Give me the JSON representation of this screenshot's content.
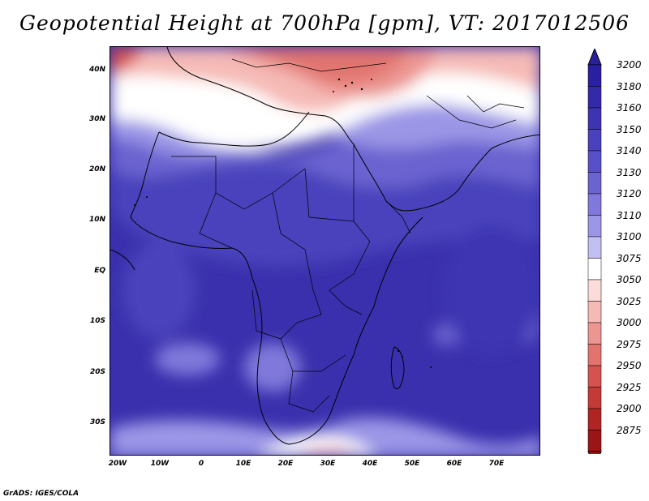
{
  "title": "Geopotential Height at 700hPa [gpm], VT: 2017012506",
  "credit": "GrADS: IGES/COLA",
  "lat_labels": [
    "40N",
    "30N",
    "20N",
    "10N",
    "EQ",
    "10S",
    "20S",
    "30S"
  ],
  "lon_labels": [
    "20W",
    "10W",
    "0",
    "10E",
    "20E",
    "30E",
    "40E",
    "50E",
    "60E",
    "70E"
  ],
  "colorbar": {
    "levels": [
      "3200",
      "3180",
      "3160",
      "3150",
      "3140",
      "3130",
      "3120",
      "3110",
      "3100",
      "3075",
      "3050",
      "3025",
      "3000",
      "2975",
      "2950",
      "2925",
      "2900",
      "2875"
    ],
    "colors": [
      "#2a1fa0",
      "#3429a8",
      "#3e34b2",
      "#4a42bc",
      "#5850c6",
      "#6a63d0",
      "#8079db",
      "#9b96e6",
      "#c2bff1",
      "#ffffff",
      "#fbdcda",
      "#f5bab6",
      "#ec9692",
      "#e1746f",
      "#d4534f",
      "#c43a36",
      "#b02523",
      "#9a1515"
    ],
    "top_arrow_color": "#2b1f9a",
    "bottom_arrow_color": "#a01818"
  },
  "ocean_color": "#3e34b2"
}
